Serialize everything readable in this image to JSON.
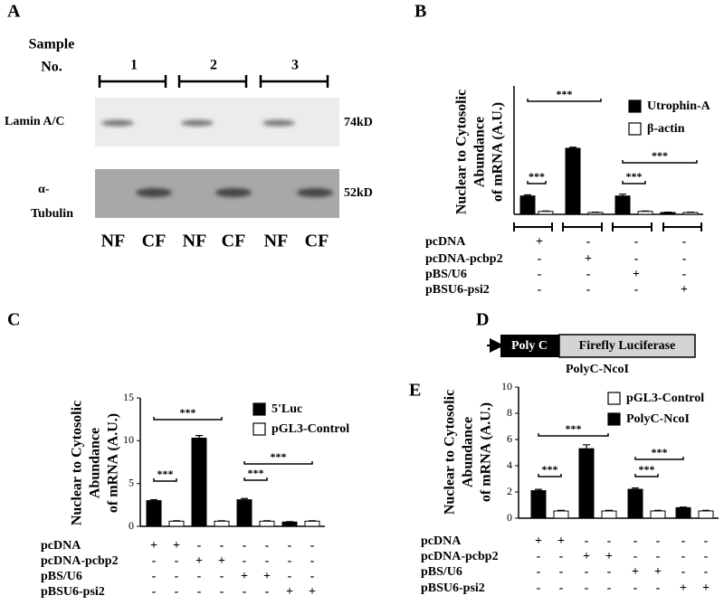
{
  "panel_a": {
    "letter": "A",
    "sample_header": [
      "Sample",
      "No."
    ],
    "samples": [
      "1",
      "2",
      "3"
    ],
    "blots": [
      {
        "label": [
          "Lamin A/C"
        ],
        "size": "74kD"
      },
      {
        "label": [
          "α-",
          "Tubulin"
        ],
        "size": "52kD"
      }
    ],
    "lanes": [
      "NF",
      "CF",
      "NF",
      "CF",
      "NF",
      "CF"
    ]
  },
  "panel_d": {
    "letter": "D",
    "segments": [
      "Poly C",
      "Firefly Luciferase"
    ],
    "construct": "PolyC-NcoI"
  },
  "chart_data": [
    {
      "type": "bar",
      "panel": "B",
      "ylabel": [
        "Nuclear to Cytosolic",
        "Abundance",
        "of mRNA (A.U.)"
      ],
      "ylim": [
        0,
        35
      ],
      "series": [
        {
          "name": "Utrophin-A",
          "color": "#000000",
          "values": [
            5,
            18,
            5,
            0.5
          ],
          "errors": [
            0.3,
            0.3,
            0.5,
            0.1
          ]
        },
        {
          "name": "β-actin",
          "color": "#ffffff",
          "values": [
            0.8,
            0.5,
            0.8,
            0.5
          ],
          "errors": [
            0.1,
            0.1,
            0.1,
            0.1
          ]
        }
      ],
      "significance": [
        "***",
        "***",
        "***",
        "***"
      ],
      "table": [
        {
          "label": "pcDNA",
          "signs": [
            "+",
            "-",
            "-",
            "-"
          ]
        },
        {
          "label": "pcDNA-pcbp2",
          "signs": [
            "-",
            "+",
            "-",
            "-"
          ]
        },
        {
          "label": "pBS/U6",
          "signs": [
            "-",
            "-",
            "+",
            "-"
          ]
        },
        {
          "label": "pBSU6-psi2",
          "signs": [
            "-",
            "-",
            "-",
            "+"
          ]
        }
      ]
    },
    {
      "type": "bar",
      "panel": "C",
      "ylabel": [
        "Nuclear to Cytosolic",
        "Abundance",
        "of mRNA (A.U.)"
      ],
      "ylim": [
        0,
        15
      ],
      "yticks": [
        0,
        5,
        10,
        15
      ],
      "series": [
        {
          "name": "5'Luc",
          "color": "#000000",
          "values": [
            3,
            10.3,
            3.1,
            0.5
          ],
          "errors": [
            0.1,
            0.3,
            0.15,
            0.05
          ]
        },
        {
          "name": "pGL3-Control",
          "color": "#ffffff",
          "values": [
            0.6,
            0.6,
            0.6,
            0.6
          ],
          "errors": [
            0.05,
            0.05,
            0.05,
            0.05
          ]
        }
      ],
      "significance": [
        "***",
        "***",
        "***",
        "***"
      ],
      "table": [
        {
          "label": "pcDNA",
          "signs": [
            "+",
            "+",
            "-",
            "-",
            "-",
            "-",
            "-",
            "-"
          ]
        },
        {
          "label": "pcDNA-pcbp2",
          "signs": [
            "-",
            "-",
            "+",
            "+",
            "-",
            "-",
            "-",
            "-"
          ]
        },
        {
          "label": "pBS/U6",
          "signs": [
            "-",
            "-",
            "-",
            "-",
            "+",
            "+",
            "-",
            "-"
          ]
        },
        {
          "label": "pBSU6-psi2",
          "signs": [
            "-",
            "-",
            "-",
            "-",
            "-",
            "-",
            "+",
            "+"
          ]
        }
      ]
    },
    {
      "type": "bar",
      "panel": "E",
      "ylabel": [
        "Nuclear to Cytosolic",
        "Abundance",
        "of mRNA (A.U.)"
      ],
      "ylim": [
        0,
        10
      ],
      "yticks": [
        0,
        2,
        4,
        6,
        8,
        10
      ],
      "series": [
        {
          "name": "pGL3-Control",
          "color": "#ffffff",
          "values": [
            0.55,
            0.55,
            0.55,
            0.55
          ],
          "errors": [
            0.05,
            0.05,
            0.05,
            0.05
          ]
        },
        {
          "name": "PolyC-NcoI",
          "color": "#000000",
          "values": [
            2.1,
            5.3,
            2.2,
            0.8
          ],
          "errors": [
            0.1,
            0.3,
            0.1,
            0.05
          ]
        }
      ],
      "significance": [
        "***",
        "***",
        "***",
        "***"
      ],
      "table": [
        {
          "label": "pcDNA",
          "signs": [
            "+",
            "+",
            "-",
            "-",
            "-",
            "-",
            "-",
            "-"
          ]
        },
        {
          "label": "pcDNA-pcbp2",
          "signs": [
            "-",
            "-",
            "+",
            "+",
            "-",
            "-",
            "-",
            "-"
          ]
        },
        {
          "label": "pBS/U6",
          "signs": [
            "-",
            "-",
            "-",
            "-",
            "+",
            "+",
            "-",
            "-"
          ]
        },
        {
          "label": "pBSU6-psi2",
          "signs": [
            "-",
            "-",
            "-",
            "-",
            "-",
            "-",
            "+",
            "+"
          ]
        }
      ]
    }
  ]
}
